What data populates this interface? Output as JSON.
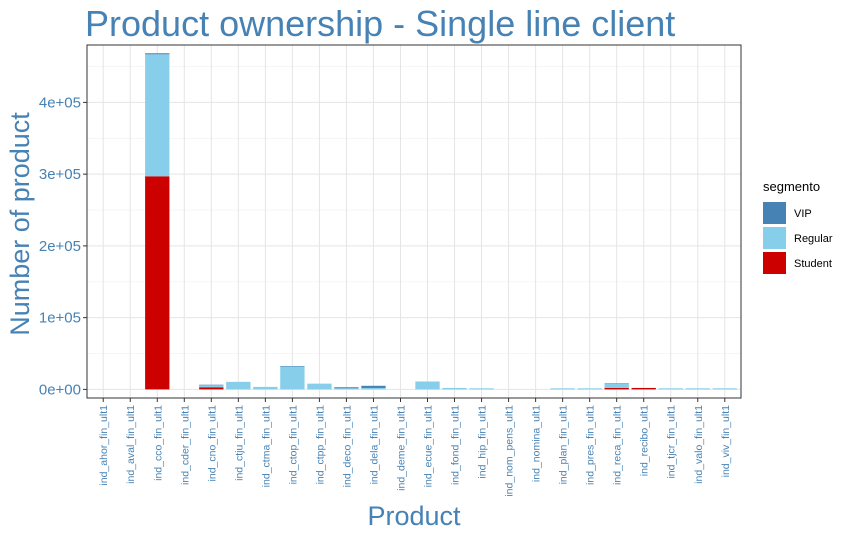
{
  "chart_data": {
    "type": "bar",
    "stacked": true,
    "title": "Product ownership - Single line client",
    "xlabel": "Product",
    "ylabel": "Number of product",
    "ylim": [
      -12000,
      480000
    ],
    "yticks": [
      0,
      100000,
      200000,
      300000,
      400000
    ],
    "ytick_labels": [
      "0e+00",
      "1e+05",
      "2e+05",
      "3e+05",
      "4e+05"
    ],
    "grid": true,
    "legend": {
      "title": "segmento",
      "placement": "right"
    },
    "categories": [
      "ind_ahor_fin_ult1",
      "ind_aval_fin_ult1",
      "ind_cco_fin_ult1",
      "ind_cder_fin_ult1",
      "ind_cno_fin_ult1",
      "ind_ctju_fin_ult1",
      "ind_ctma_fin_ult1",
      "ind_ctop_fin_ult1",
      "ind_ctpp_fin_ult1",
      "ind_deco_fin_ult1",
      "ind_dela_fin_ult1",
      "ind_deme_fin_ult1",
      "ind_ecue_fin_ult1",
      "ind_fond_fin_ult1",
      "ind_hip_fin_ult1",
      "ind_nom_pens_ult1",
      "ind_nomina_ult1",
      "ind_plan_fin_ult1",
      "ind_pres_fin_ult1",
      "ind_reca_fin_ult1",
      "ind_recibo_ult1",
      "ind_tjcr_fin_ult1",
      "ind_valo_fin_ult1",
      "ind_viv_fin_ult1"
    ],
    "series": [
      {
        "name": "VIP",
        "color": "#4682b4",
        "values": [
          0,
          0,
          1500,
          0,
          500,
          0,
          0,
          500,
          0,
          1500,
          3000,
          0,
          0,
          0,
          0,
          0,
          0,
          0,
          0,
          500,
          0,
          0,
          0,
          0
        ]
      },
      {
        "name": "Regular",
        "color": "#87ceeb",
        "values": [
          0,
          0,
          170000,
          0,
          3000,
          10500,
          3500,
          32000,
          8000,
          1500,
          2000,
          0,
          11000,
          2000,
          1500,
          0,
          0,
          1500,
          1500,
          6000,
          0,
          1500,
          1500,
          1500
        ]
      },
      {
        "name": "Student",
        "color": "#cd0000",
        "values": [
          0,
          0,
          297000,
          0,
          3000,
          0,
          0,
          0,
          0,
          0,
          0,
          0,
          0,
          0,
          0,
          0,
          0,
          0,
          0,
          2000,
          2000,
          0,
          0,
          0
        ]
      }
    ]
  }
}
